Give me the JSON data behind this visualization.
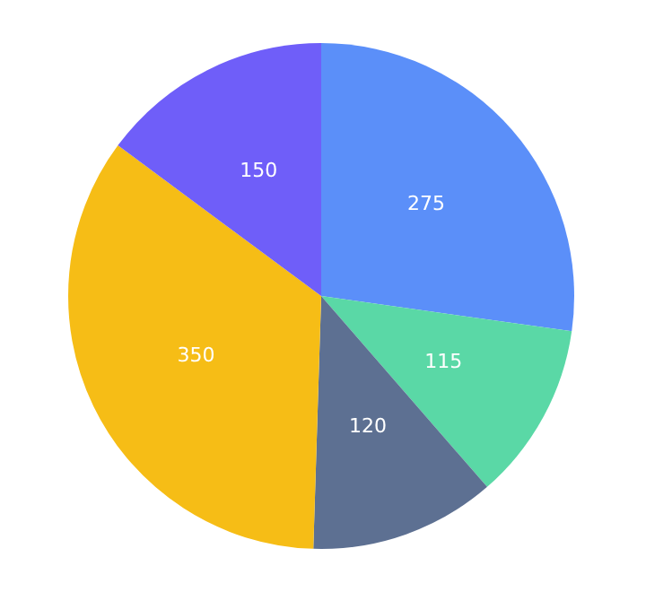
{
  "chart_data": {
    "type": "pie",
    "categories": [
      null,
      null,
      null,
      null,
      null
    ],
    "values": [
      275,
      115,
      120,
      350,
      150
    ],
    "colors": [
      "#5b8ff9",
      "#5ad8a6",
      "#5d7092",
      "#f6bd16",
      "#6f5ef9"
    ],
    "data_labels": true,
    "legend": false
  }
}
